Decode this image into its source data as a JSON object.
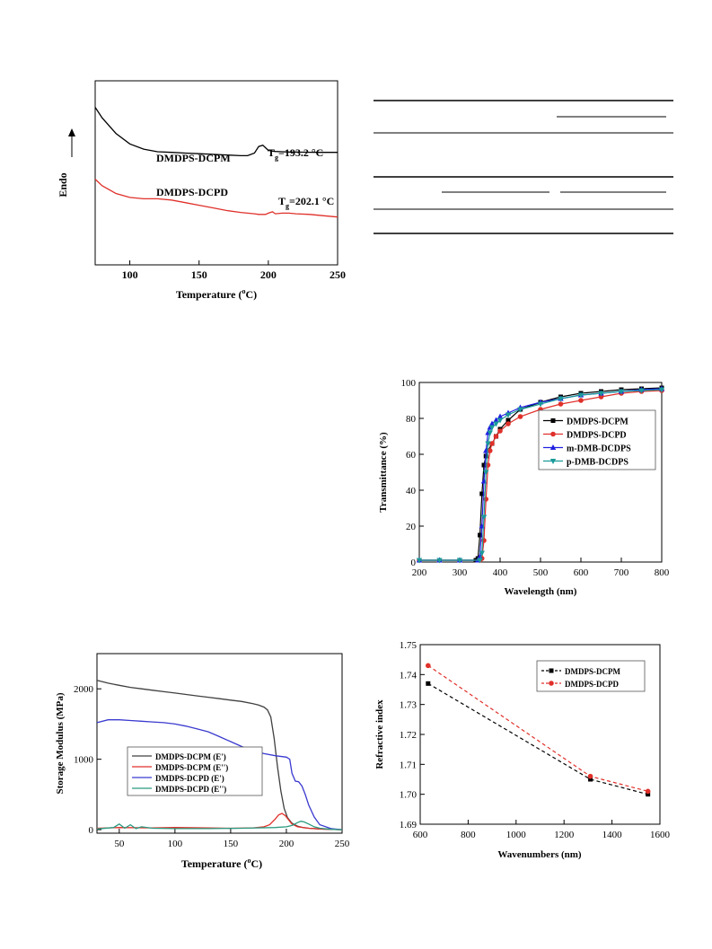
{
  "chart_data": [
    {
      "id": "dsc",
      "type": "line",
      "xlabel_main": "Temperature (",
      "xlabel_sup": "o",
      "xlabel_end": "C)",
      "ylabel": "Endo",
      "xlim": [
        75,
        250
      ],
      "xticks": [
        "100",
        "150",
        "200",
        "250"
      ],
      "x": [
        75,
        80,
        90,
        100,
        110,
        120,
        130,
        140,
        150,
        160,
        170,
        180,
        185,
        190,
        193,
        196,
        198,
        200,
        203,
        205,
        210,
        215,
        220,
        230,
        240,
        250
      ],
      "series": [
        {
          "label": "DMDPS-DCPM",
          "color": "#000000",
          "values": [
            1.0,
            0.92,
            0.8,
            0.72,
            0.68,
            0.66,
            0.655,
            0.65,
            0.645,
            0.64,
            0.635,
            0.63,
            0.63,
            0.65,
            0.7,
            0.71,
            0.69,
            0.67,
            0.665,
            0.662,
            0.66,
            0.658,
            0.657,
            0.656,
            0.655,
            0.655
          ]
        },
        {
          "label": "DMDPS-DCPD",
          "color": "#e0302a",
          "values": [
            0.45,
            0.4,
            0.34,
            0.31,
            0.3,
            0.3,
            0.29,
            0.27,
            0.25,
            0.23,
            0.21,
            0.195,
            0.19,
            0.185,
            0.18,
            0.18,
            0.18,
            0.19,
            0.2,
            0.185,
            0.19,
            0.19,
            0.185,
            0.18,
            0.17,
            0.16
          ]
        }
      ],
      "annotations": [
        {
          "series": 0,
          "text_main": "T",
          "text_sub": "g",
          "text_end": "=193.2 °C"
        },
        {
          "series": 1,
          "text_main": "T",
          "text_sub": "g",
          "text_end": "=202.1 °C"
        }
      ]
    },
    {
      "id": "transmittance",
      "type": "line",
      "xlabel": "Wavelength (nm)",
      "ylabel": "Transmittance (%)",
      "xlim": [
        200,
        800
      ],
      "ylim": [
        0,
        100
      ],
      "xticks": [
        200,
        300,
        400,
        500,
        600,
        700,
        800
      ],
      "yticks": [
        0,
        20,
        40,
        60,
        80,
        100
      ],
      "legend": "center-right",
      "series": [
        {
          "name": "DMDPS-DCPM",
          "color": "#000000",
          "marker": "square",
          "x": [
            200,
            250,
            300,
            340,
            345,
            350,
            355,
            360,
            365,
            370,
            380,
            390,
            400,
            420,
            450,
            500,
            550,
            600,
            650,
            700,
            750,
            800
          ],
          "y": [
            1,
            1,
            1,
            1,
            2,
            15,
            38,
            54,
            59,
            62,
            66,
            70,
            74,
            79,
            85,
            89,
            92,
            94,
            95,
            96,
            96.5,
            97
          ]
        },
        {
          "name": "DMDPS-DCPD",
          "color": "#e0302a",
          "marker": "circle",
          "x": [
            200,
            250,
            300,
            350,
            355,
            360,
            365,
            370,
            375,
            380,
            390,
            400,
            420,
            450,
            500,
            550,
            600,
            650,
            700,
            750,
            800
          ],
          "y": [
            1,
            1,
            1,
            1,
            2,
            12,
            35,
            54,
            62,
            66,
            70,
            73,
            77,
            81,
            85,
            88,
            90,
            92,
            94,
            95,
            95.5
          ]
        },
        {
          "name": "m-DMB-DCDPS",
          "color": "#2020e0",
          "marker": "triangle",
          "x": [
            200,
            250,
            300,
            345,
            350,
            355,
            360,
            365,
            370,
            375,
            380,
            390,
            400,
            420,
            450,
            500,
            550,
            600,
            650,
            700,
            750,
            800
          ],
          "y": [
            1,
            1,
            1,
            1,
            3,
            20,
            45,
            62,
            72,
            75,
            77,
            79,
            81,
            83,
            86,
            89,
            91,
            93,
            94,
            95,
            96,
            96.5
          ]
        },
        {
          "name": "p-DMB-DCDPS",
          "color": "#1a9a9a",
          "marker": "triangle-down",
          "x": [
            200,
            250,
            300,
            350,
            355,
            360,
            365,
            370,
            375,
            380,
            390,
            400,
            420,
            450,
            500,
            550,
            600,
            650,
            700,
            750,
            800
          ],
          "y": [
            1,
            1,
            1,
            1,
            5,
            25,
            50,
            66,
            72,
            75,
            77,
            79,
            82,
            85,
            88,
            91,
            93,
            94,
            95,
            95.5,
            96
          ]
        }
      ]
    },
    {
      "id": "dma",
      "type": "line",
      "xlabel_main": "Temperature (",
      "xlabel_sup": "o",
      "xlabel_end": "C)",
      "ylabel": "Storage Modulus (MPa)",
      "xlim": [
        30,
        250
      ],
      "ylim": [
        -50,
        2500
      ],
      "xticks": [
        50,
        100,
        150,
        200,
        250
      ],
      "yticks": [
        0,
        1000,
        2000
      ],
      "legend": "lower-left",
      "series": [
        {
          "name": "DMDPS-DCPM (E')",
          "color": "#404040",
          "x": [
            30,
            40,
            50,
            60,
            70,
            80,
            90,
            100,
            110,
            120,
            130,
            140,
            150,
            160,
            170,
            175,
            180,
            183,
            186,
            189,
            192,
            195,
            198,
            201,
            205,
            210,
            215,
            220,
            230,
            240,
            250
          ],
          "y": [
            2120,
            2080,
            2050,
            2020,
            2000,
            1980,
            1960,
            1940,
            1920,
            1900,
            1880,
            1860,
            1840,
            1820,
            1790,
            1770,
            1740,
            1700,
            1600,
            1300,
            900,
            550,
            300,
            170,
            90,
            50,
            30,
            20,
            10,
            5,
            0
          ]
        },
        {
          "name": "DMDPS-DCPM (E'')",
          "color": "#e0302a",
          "x": [
            30,
            50,
            80,
            100,
            130,
            150,
            170,
            180,
            185,
            190,
            193,
            196,
            199,
            202,
            205,
            210,
            220,
            230,
            240,
            250
          ],
          "y": [
            20,
            30,
            25,
            30,
            25,
            20,
            25,
            40,
            70,
            150,
            210,
            230,
            200,
            140,
            80,
            40,
            20,
            10,
            5,
            0
          ]
        },
        {
          "name": "DMDPS-DCPD (E')",
          "color": "#3a3ad0",
          "x": [
            30,
            40,
            50,
            60,
            70,
            80,
            90,
            100,
            110,
            120,
            130,
            140,
            150,
            160,
            170,
            180,
            190,
            200,
            203,
            205,
            208,
            211,
            214,
            217,
            220,
            225,
            230,
            240,
            250
          ],
          "y": [
            1520,
            1560,
            1560,
            1550,
            1540,
            1530,
            1520,
            1500,
            1470,
            1430,
            1390,
            1320,
            1250,
            1180,
            1120,
            1080,
            1050,
            1030,
            1000,
            800,
            690,
            680,
            620,
            500,
            350,
            180,
            70,
            15,
            0
          ]
        },
        {
          "name": "DMDPS-DCPD (E'')",
          "color": "#2a9a80",
          "x": [
            30,
            45,
            50,
            55,
            60,
            65,
            70,
            80,
            100,
            130,
            160,
            190,
            200,
            205,
            210,
            213,
            216,
            220,
            225,
            230,
            240,
            250
          ],
          "y": [
            10,
            30,
            80,
            20,
            70,
            15,
            40,
            20,
            15,
            15,
            20,
            30,
            40,
            60,
            100,
            120,
            110,
            80,
            40,
            20,
            5,
            0
          ]
        }
      ]
    },
    {
      "id": "refractive",
      "type": "line",
      "xlabel": "Wavenumbers (nm)",
      "ylabel": "Refractive index",
      "xlim": [
        600,
        1600
      ],
      "ylim": [
        1.69,
        1.75
      ],
      "xticks": [
        600,
        800,
        1000,
        1200,
        1400,
        1600
      ],
      "yticks": [
        "1.69",
        "1.70",
        "1.71",
        "1.72",
        "1.73",
        "1.74",
        "1.75"
      ],
      "legend": "top-right",
      "series": [
        {
          "name": "DMDPS-DCPM",
          "color": "#000000",
          "marker": "square",
          "x": [
            633,
            1310,
            1550
          ],
          "y": [
            1.737,
            1.705,
            1.7
          ]
        },
        {
          "name": "DMDPS-DCPD",
          "color": "#e0302a",
          "marker": "circle",
          "x": [
            633,
            1310,
            1550
          ],
          "y": [
            1.743,
            1.706,
            1.701
          ]
        }
      ]
    }
  ],
  "table": {
    "note": ""
  }
}
